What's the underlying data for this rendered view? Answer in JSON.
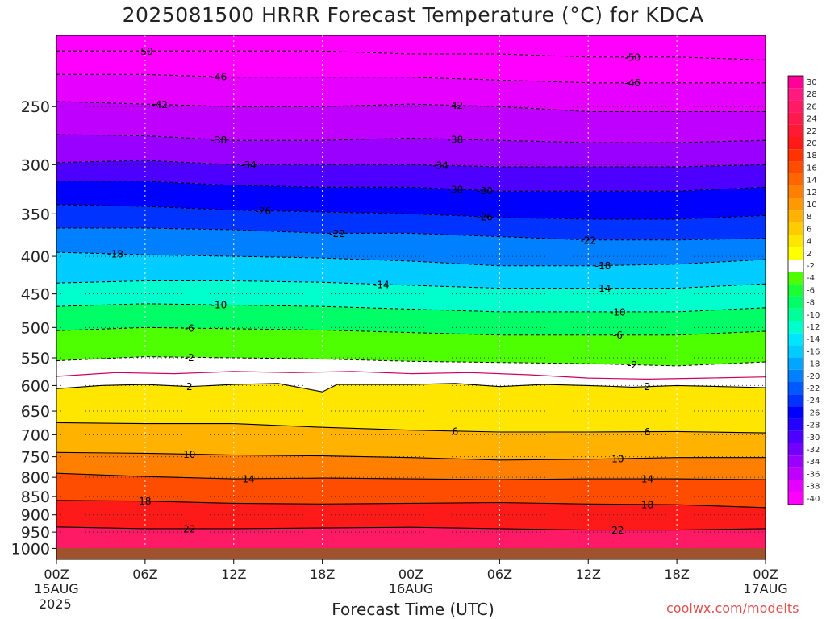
{
  "chart_data": {
    "type": "heatmap",
    "title": "2025081500 HRRR Forecast Temperature (°C) for KDCA",
    "xlabel": "Forecast Time (UTC)",
    "ylabel": "",
    "y_scale": "log-pressure",
    "ylim": [
      1035,
      200
    ],
    "yticks": [
      250,
      300,
      350,
      400,
      450,
      500,
      550,
      600,
      650,
      700,
      750,
      800,
      850,
      900,
      950,
      1000
    ],
    "xlim": [
      0,
      48
    ],
    "x_ticks": [
      {
        "h": 0,
        "label": "00Z",
        "sub": "15AUG"
      },
      {
        "h": 6,
        "label": "06Z",
        "sub": ""
      },
      {
        "h": 12,
        "label": "12Z",
        "sub": ""
      },
      {
        "h": 18,
        "label": "18Z",
        "sub": ""
      },
      {
        "h": 24,
        "label": "00Z",
        "sub": "16AUG"
      },
      {
        "h": 30,
        "label": "06Z",
        "sub": ""
      },
      {
        "h": 36,
        "label": "12Z",
        "sub": ""
      },
      {
        "h": 42,
        "label": "18Z",
        "sub": ""
      },
      {
        "h": 48,
        "label": "00Z",
        "sub": "17AUG"
      }
    ],
    "year": "2025",
    "grid": true,
    "colorbar_labels": [
      "30",
      "28",
      "26",
      "24",
      "22",
      "20",
      "18",
      "16",
      "14",
      "12",
      "10",
      "8",
      "6",
      "4",
      "2",
      "-2",
      "-4",
      "-6",
      "-8",
      "-10",
      "-12",
      "-14",
      "-16",
      "-18",
      "-20",
      "-22",
      "-24",
      "-26",
      "-28",
      "-30",
      "-32",
      "-34",
      "-36",
      "-38",
      "-40"
    ],
    "colorbar_colors": [
      "#ff0099",
      "#ff1a80",
      "#ff1a66",
      "#ff1a4d",
      "#ff1a33",
      "#ff1a1a",
      "#ff3300",
      "#ff4d00",
      "#ff6600",
      "#ff8000",
      "#ff9900",
      "#ffb300",
      "#ffcc00",
      "#ffe600",
      "#ffff00",
      "#ffffff",
      "#4dff00",
      "#1aff33",
      "#00ff66",
      "#00ff99",
      "#00ffcc",
      "#00e6ff",
      "#00ccff",
      "#00a6ff",
      "#0080ff",
      "#0059ff",
      "#0033ff",
      "#0000ff",
      "#2600ff",
      "#4d00ff",
      "#7300ff",
      "#9900ff",
      "#bf00ff",
      "#e600ff",
      "#ff00ff"
    ],
    "warm_contours": [
      {
        "label": "2",
        "points": [
          [
            0,
            606
          ],
          [
            3,
            600
          ],
          [
            6,
            598
          ],
          [
            9,
            602
          ],
          [
            12,
            598
          ],
          [
            15,
            596
          ],
          [
            18,
            612
          ],
          [
            19,
            598
          ],
          [
            21,
            598
          ],
          [
            24,
            598
          ],
          [
            27,
            596
          ],
          [
            30,
            602
          ],
          [
            33,
            598
          ],
          [
            36,
            600
          ],
          [
            39,
            603
          ],
          [
            42,
            600
          ],
          [
            45,
            602
          ],
          [
            48,
            604
          ]
        ]
      },
      {
        "label": "6",
        "points": [
          [
            0,
            674
          ],
          [
            6,
            676
          ],
          [
            12,
            676
          ],
          [
            18,
            684
          ],
          [
            24,
            690
          ],
          [
            30,
            694
          ],
          [
            36,
            694
          ],
          [
            42,
            693
          ],
          [
            48,
            696
          ]
        ]
      },
      {
        "label": "10",
        "points": [
          [
            0,
            740
          ],
          [
            6,
            742
          ],
          [
            12,
            746
          ],
          [
            18,
            748
          ],
          [
            24,
            752
          ],
          [
            30,
            758
          ],
          [
            36,
            756
          ],
          [
            42,
            752
          ],
          [
            48,
            752
          ]
        ]
      },
      {
        "label": "14",
        "points": [
          [
            0,
            790
          ],
          [
            6,
            798
          ],
          [
            12,
            804
          ],
          [
            18,
            802
          ],
          [
            24,
            804
          ],
          [
            30,
            806
          ],
          [
            36,
            804
          ],
          [
            42,
            804
          ],
          [
            48,
            806
          ]
        ]
      },
      {
        "label": "18",
        "points": [
          [
            0,
            860
          ],
          [
            6,
            862
          ],
          [
            12,
            868
          ],
          [
            18,
            870
          ],
          [
            24,
            868
          ],
          [
            30,
            866
          ],
          [
            36,
            870
          ],
          [
            42,
            872
          ],
          [
            48,
            880
          ]
        ]
      },
      {
        "label": "22",
        "points": [
          [
            0,
            935
          ],
          [
            6,
            940
          ],
          [
            12,
            940
          ],
          [
            18,
            938
          ],
          [
            24,
            936
          ],
          [
            30,
            940
          ],
          [
            36,
            944
          ],
          [
            42,
            944
          ],
          [
            48,
            940
          ]
        ]
      }
    ],
    "zero_contour": [
      [
        0,
        583
      ],
      [
        4,
        576
      ],
      [
        8,
        578
      ],
      [
        12,
        574
      ],
      [
        16,
        576
      ],
      [
        20,
        574
      ],
      [
        24,
        578
      ],
      [
        28,
        576
      ],
      [
        32,
        580
      ],
      [
        36,
        586
      ],
      [
        40,
        588
      ],
      [
        44,
        586
      ],
      [
        48,
        584
      ]
    ],
    "cold_contours": [
      {
        "label": "-2",
        "points": [
          [
            0,
            555
          ],
          [
            6,
            548
          ],
          [
            12,
            550
          ],
          [
            18,
            552
          ],
          [
            24,
            556
          ],
          [
            30,
            558
          ],
          [
            36,
            560
          ],
          [
            42,
            564
          ],
          [
            48,
            557
          ]
        ]
      },
      {
        "label": "-6",
        "points": [
          [
            0,
            505
          ],
          [
            6,
            500
          ],
          [
            12,
            502
          ],
          [
            18,
            504
          ],
          [
            24,
            508
          ],
          [
            30,
            512
          ],
          [
            36,
            512
          ],
          [
            42,
            512
          ],
          [
            48,
            506
          ]
        ]
      },
      {
        "label": "-10",
        "points": [
          [
            0,
            468
          ],
          [
            6,
            464
          ],
          [
            12,
            466
          ],
          [
            18,
            468
          ],
          [
            24,
            472
          ],
          [
            30,
            476
          ],
          [
            36,
            476
          ],
          [
            42,
            476
          ],
          [
            48,
            470
          ]
        ]
      },
      {
        "label": "-14",
        "points": [
          [
            0,
            435
          ],
          [
            6,
            432
          ],
          [
            12,
            432
          ],
          [
            18,
            434
          ],
          [
            24,
            438
          ],
          [
            30,
            442
          ],
          [
            36,
            442
          ],
          [
            42,
            442
          ],
          [
            48,
            436
          ]
        ]
      },
      {
        "label": "-18",
        "points": [
          [
            0,
            395
          ],
          [
            6,
            398
          ],
          [
            12,
            400
          ],
          [
            18,
            402
          ],
          [
            24,
            406
          ],
          [
            30,
            412
          ],
          [
            36,
            412
          ],
          [
            42,
            410
          ],
          [
            48,
            404
          ]
        ]
      },
      {
        "label": "-22",
        "points": [
          [
            0,
            366
          ],
          [
            6,
            366
          ],
          [
            12,
            368
          ],
          [
            18,
            372
          ],
          [
            24,
            372
          ],
          [
            30,
            376
          ],
          [
            36,
            380
          ],
          [
            42,
            380
          ],
          [
            48,
            378
          ]
        ]
      },
      {
        "label": "-26",
        "points": [
          [
            0,
            340
          ],
          [
            6,
            342
          ],
          [
            12,
            346
          ],
          [
            18,
            348
          ],
          [
            24,
            350
          ],
          [
            30,
            354
          ],
          [
            36,
            356
          ],
          [
            42,
            356
          ],
          [
            48,
            352
          ]
        ]
      },
      {
        "label": "-30",
        "points": [
          [
            0,
            316
          ],
          [
            6,
            316
          ],
          [
            12,
            320
          ],
          [
            18,
            322
          ],
          [
            24,
            322
          ],
          [
            30,
            326
          ],
          [
            36,
            326
          ],
          [
            42,
            326
          ],
          [
            48,
            322
          ]
        ]
      },
      {
        "label": "-34",
        "points": [
          [
            0,
            298
          ],
          [
            6,
            296
          ],
          [
            12,
            300
          ],
          [
            18,
            300
          ],
          [
            24,
            300
          ],
          [
            30,
            302
          ],
          [
            36,
            302
          ],
          [
            42,
            302
          ],
          [
            48,
            300
          ]
        ]
      },
      {
        "label": "-38",
        "points": [
          [
            0,
            273
          ],
          [
            6,
            274
          ],
          [
            12,
            278
          ],
          [
            18,
            278
          ],
          [
            24,
            276
          ],
          [
            30,
            278
          ],
          [
            36,
            280
          ],
          [
            42,
            280
          ],
          [
            48,
            278
          ]
        ]
      },
      {
        "label": "-42",
        "points": [
          [
            0,
            246
          ],
          [
            6,
            248
          ],
          [
            12,
            250
          ],
          [
            18,
            250
          ],
          [
            24,
            248
          ],
          [
            30,
            250
          ],
          [
            36,
            254
          ],
          [
            42,
            254
          ],
          [
            48,
            254
          ]
        ]
      },
      {
        "label": "-46",
        "points": [
          [
            0,
            226
          ],
          [
            6,
            226
          ],
          [
            12,
            228
          ],
          [
            18,
            228
          ],
          [
            24,
            228
          ],
          [
            30,
            230
          ],
          [
            36,
            232
          ],
          [
            42,
            232
          ],
          [
            48,
            232
          ]
        ]
      },
      {
        "label": "-50",
        "points": [
          [
            0,
            210
          ],
          [
            6,
            210
          ],
          [
            12,
            210
          ],
          [
            18,
            210
          ],
          [
            24,
            212
          ],
          [
            30,
            212
          ],
          [
            36,
            214
          ],
          [
            42,
            214
          ],
          [
            48,
            216
          ]
        ]
      }
    ]
  },
  "credit": "coolwx.com/modelts"
}
